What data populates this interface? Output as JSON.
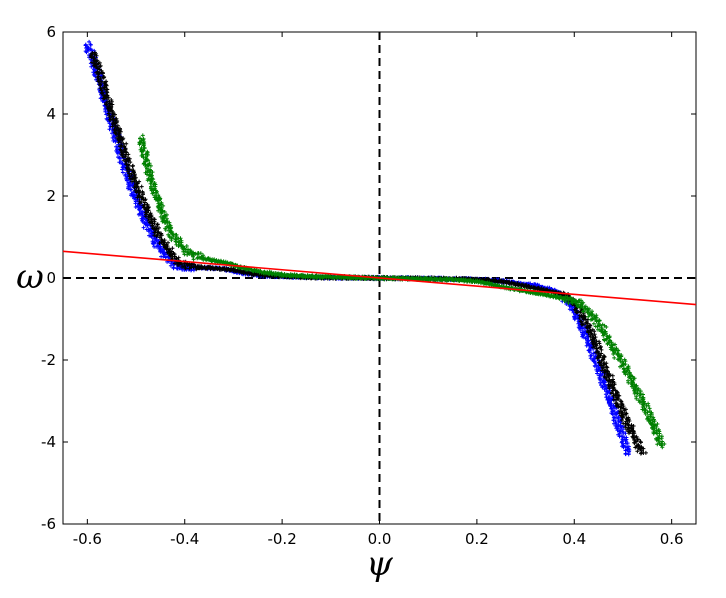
{
  "chart_data": {
    "type": "scatter",
    "title": "",
    "xlabel": "ψ",
    "ylabel": "ω",
    "xlim": [
      -0.65,
      0.65
    ],
    "ylim": [
      -6,
      6
    ],
    "xticks": [
      -0.6,
      -0.4,
      -0.2,
      0.0,
      0.2,
      0.4,
      0.6
    ],
    "xtick_labels": [
      "-0.6",
      "-0.4",
      "-0.2",
      "0.0",
      "0.2",
      "0.4",
      "0.6"
    ],
    "yticks": [
      -6,
      -4,
      -2,
      0,
      2,
      4,
      6
    ],
    "ytick_labels": [
      "-6",
      "-4",
      "-2",
      "0",
      "2",
      "4",
      "6"
    ],
    "grid": false,
    "legend": "none",
    "reference_lines": [
      {
        "orientation": "horizontal",
        "value": 0,
        "style": "dashed",
        "color": "#000000"
      },
      {
        "orientation": "vertical",
        "value": 0,
        "style": "dashed",
        "color": "#000000"
      }
    ],
    "series": [
      {
        "color": "#0000ff",
        "marker": "+",
        "points": [
          [
            -0.6,
            5.7
          ],
          [
            -0.58,
            5.0
          ],
          [
            -0.56,
            4.2
          ],
          [
            -0.54,
            3.4
          ],
          [
            -0.52,
            2.6
          ],
          [
            -0.5,
            1.95
          ],
          [
            -0.48,
            1.35
          ],
          [
            -0.46,
            0.9
          ],
          [
            -0.44,
            0.55
          ],
          [
            -0.42,
            0.32
          ],
          [
            -0.4,
            0.25
          ],
          [
            -0.36,
            0.25
          ],
          [
            -0.32,
            0.22
          ],
          [
            -0.28,
            0.12
          ],
          [
            -0.24,
            0.06
          ],
          [
            -0.2,
            0.04
          ],
          [
            -0.1,
            0.01
          ],
          [
            0.0,
            0.0
          ],
          [
            0.1,
            -0.01
          ],
          [
            0.2,
            -0.04
          ],
          [
            0.24,
            -0.06
          ],
          [
            0.28,
            -0.12
          ],
          [
            0.32,
            -0.18
          ],
          [
            0.36,
            -0.3
          ],
          [
            0.38,
            -0.45
          ],
          [
            0.4,
            -0.8
          ],
          [
            0.42,
            -1.3
          ],
          [
            0.44,
            -1.9
          ],
          [
            0.46,
            -2.5
          ],
          [
            0.48,
            -3.2
          ],
          [
            0.5,
            -3.9
          ],
          [
            0.51,
            -4.3
          ]
        ]
      },
      {
        "color": "#000000",
        "marker": "+",
        "points": [
          [
            -0.59,
            5.5
          ],
          [
            -0.57,
            4.8
          ],
          [
            -0.55,
            4.0
          ],
          [
            -0.53,
            3.3
          ],
          [
            -0.51,
            2.6
          ],
          [
            -0.49,
            2.0
          ],
          [
            -0.47,
            1.45
          ],
          [
            -0.45,
            1.0
          ],
          [
            -0.43,
            0.6
          ],
          [
            -0.41,
            0.35
          ],
          [
            -0.38,
            0.27
          ],
          [
            -0.34,
            0.24
          ],
          [
            -0.3,
            0.2
          ],
          [
            -0.26,
            0.1
          ],
          [
            -0.22,
            0.05
          ],
          [
            -0.15,
            0.02
          ],
          [
            0.0,
            0.0
          ],
          [
            0.15,
            -0.02
          ],
          [
            0.22,
            -0.05
          ],
          [
            0.26,
            -0.1
          ],
          [
            0.3,
            -0.2
          ],
          [
            0.34,
            -0.3
          ],
          [
            0.38,
            -0.4
          ],
          [
            0.4,
            -0.6
          ],
          [
            0.42,
            -1.0
          ],
          [
            0.44,
            -1.5
          ],
          [
            0.46,
            -2.1
          ],
          [
            0.48,
            -2.7
          ],
          [
            0.5,
            -3.3
          ],
          [
            0.52,
            -3.8
          ],
          [
            0.54,
            -4.25
          ]
        ]
      },
      {
        "color": "#008000",
        "marker": "+",
        "points": [
          [
            -0.49,
            3.4
          ],
          [
            -0.48,
            2.9
          ],
          [
            -0.47,
            2.45
          ],
          [
            -0.46,
            2.05
          ],
          [
            -0.45,
            1.7
          ],
          [
            -0.44,
            1.4
          ],
          [
            -0.43,
            1.15
          ],
          [
            -0.42,
            0.95
          ],
          [
            -0.4,
            0.7
          ],
          [
            -0.38,
            0.55
          ],
          [
            -0.36,
            0.47
          ],
          [
            -0.32,
            0.38
          ],
          [
            -0.28,
            0.25
          ],
          [
            -0.24,
            0.14
          ],
          [
            -0.2,
            0.08
          ],
          [
            -0.15,
            0.04
          ],
          [
            0.0,
            0.0
          ],
          [
            0.15,
            -0.04
          ],
          [
            0.2,
            -0.08
          ],
          [
            0.24,
            -0.18
          ],
          [
            0.28,
            -0.28
          ],
          [
            0.32,
            -0.36
          ],
          [
            0.36,
            -0.45
          ],
          [
            0.4,
            -0.55
          ],
          [
            0.42,
            -0.7
          ],
          [
            0.44,
            -0.95
          ],
          [
            0.46,
            -1.3
          ],
          [
            0.48,
            -1.7
          ],
          [
            0.5,
            -2.1
          ],
          [
            0.52,
            -2.55
          ],
          [
            0.54,
            -3.0
          ],
          [
            0.56,
            -3.5
          ],
          [
            0.58,
            -4.1
          ]
        ]
      },
      {
        "color": "#ff0000",
        "marker": "line",
        "points": [
          [
            -0.65,
            0.65
          ],
          [
            0.65,
            -0.65
          ]
        ]
      }
    ]
  }
}
